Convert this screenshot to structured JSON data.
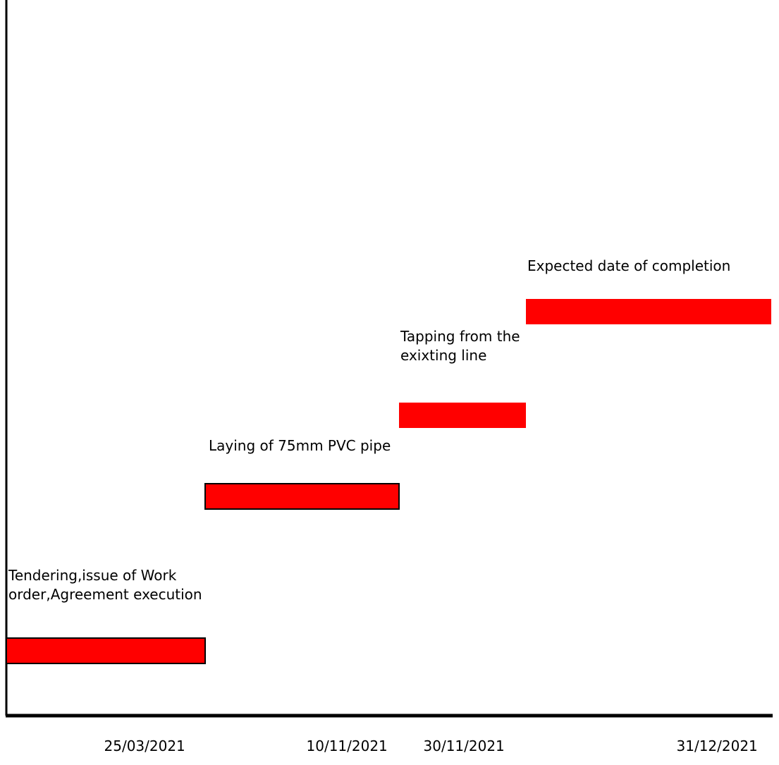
{
  "chart_data": {
    "type": "bar",
    "subtype": "gantt-staircase",
    "title": "",
    "xlabel": "",
    "ylabel": "",
    "grid": false,
    "legend": "none",
    "bar_color": "#ff0000",
    "tasks": [
      {
        "name": "Tendering,issue of Work order,Agreement execution",
        "order": 1,
        "outlined": true
      },
      {
        "name": "Laying of 75mm PVC pipe",
        "order": 2,
        "outlined": true
      },
      {
        "name": "Tapping from the exixting line",
        "order": 3,
        "outlined": false
      },
      {
        "name": "Expected date of completion",
        "order": 4,
        "outlined": false
      }
    ],
    "x_tick_labels": [
      "25/03/2021",
      "10/11/2021",
      "30/11/2021",
      "31/12/2021"
    ]
  }
}
